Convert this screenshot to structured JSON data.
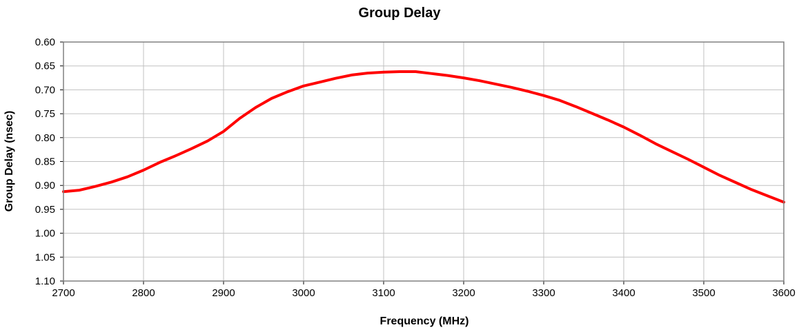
{
  "chart_data": {
    "type": "line",
    "title": "Group Delay",
    "xlabel": "Frequency (MHz)",
    "ylabel": "Group Delay (nsec)",
    "xlim": [
      2700,
      3600
    ],
    "ylim": [
      0.6,
      1.1
    ],
    "y_inverted": true,
    "grid": true,
    "legend": "none",
    "x_ticks": [
      "2700",
      "2800",
      "2900",
      "3000",
      "3100",
      "3200",
      "3300",
      "3400",
      "3500",
      "3600"
    ],
    "y_ticks": [
      "0.60",
      "0.65",
      "0.70",
      "0.75",
      "0.80",
      "0.85",
      "0.90",
      "0.95",
      "1.00",
      "1.05",
      "1.10"
    ],
    "series": [
      {
        "color": "#ff0000",
        "x": [
          2700,
          2720,
          2740,
          2760,
          2780,
          2800,
          2820,
          2840,
          2860,
          2880,
          2900,
          2920,
          2940,
          2960,
          2980,
          3000,
          3020,
          3040,
          3060,
          3080,
          3100,
          3120,
          3140,
          3160,
          3180,
          3200,
          3220,
          3240,
          3260,
          3280,
          3300,
          3320,
          3340,
          3360,
          3380,
          3400,
          3420,
          3440,
          3460,
          3480,
          3500,
          3520,
          3540,
          3560,
          3580,
          3600
        ],
        "y": [
          0.913,
          0.91,
          0.902,
          0.893,
          0.882,
          0.868,
          0.852,
          0.838,
          0.823,
          0.807,
          0.787,
          0.76,
          0.737,
          0.718,
          0.704,
          0.692,
          0.684,
          0.676,
          0.669,
          0.665,
          0.663,
          0.662,
          0.662,
          0.666,
          0.67,
          0.675,
          0.681,
          0.688,
          0.695,
          0.703,
          0.712,
          0.722,
          0.735,
          0.749,
          0.763,
          0.778,
          0.795,
          0.813,
          0.829,
          0.845,
          0.862,
          0.879,
          0.894,
          0.909,
          0.922,
          0.935
        ]
      }
    ]
  }
}
